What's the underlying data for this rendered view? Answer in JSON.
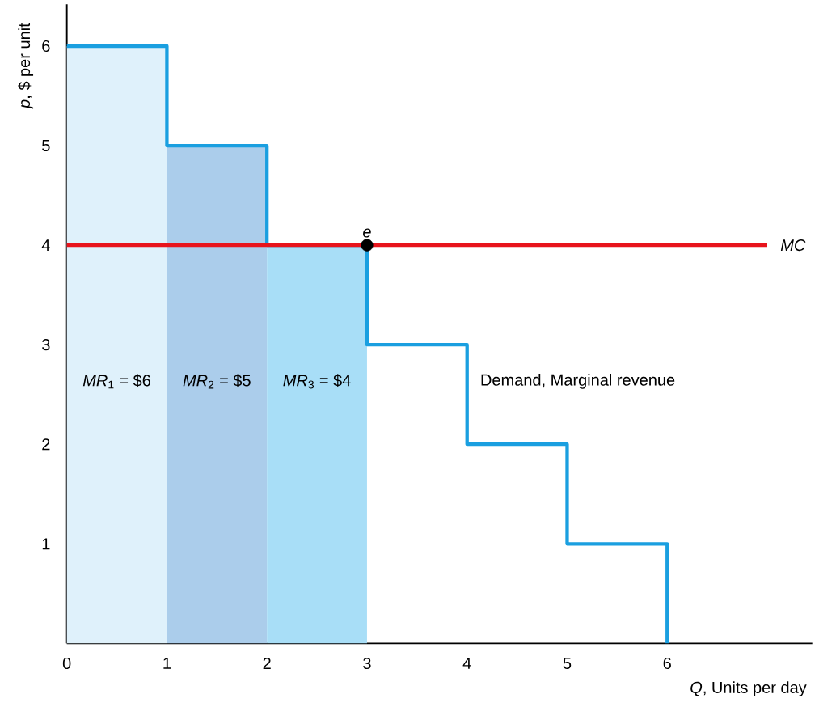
{
  "chart_data": {
    "type": "step",
    "xlabel": "*Q*, Units per day",
    "ylabel": "*p*, $ per unit",
    "xlim": [
      0,
      7.45
    ],
    "ylim": [
      0,
      6.42
    ],
    "xticks": [
      0,
      1,
      2,
      3,
      4,
      5,
      6
    ],
    "yticks": [
      1,
      2,
      3,
      4,
      5,
      6
    ],
    "series": [
      {
        "type": "bar",
        "x": [
          0.5,
          1.5,
          2.5
        ],
        "values": [
          6,
          5,
          4
        ],
        "colors": [
          "#dff1fb",
          "#abcdeb",
          "#a8def7"
        ],
        "value_labels": [
          "*MR*$_{1}$ = $6",
          "*MR*$_{2}$ = $5",
          "*MR*$_{3}$ = $4"
        ]
      },
      {
        "name": "Demand, Marginal revenue",
        "color": "#1a9fe0",
        "x": [
          0,
          1,
          2,
          3,
          4,
          5,
          6
        ],
        "values": [
          6,
          5,
          4,
          3,
          2,
          1,
          0
        ]
      },
      {
        "type": "line",
        "name": "MC",
        "color": "#e8141c",
        "x": [
          0,
          7
        ],
        "values": [
          4,
          4
        ]
      },
      {
        "type": "scatter",
        "color": "#000000",
        "marker": "circle",
        "x": [
          3
        ],
        "values": [
          4
        ]
      }
    ],
    "annotations": [
      {
        "text": "e",
        "x": 3,
        "y": 4
      }
    ]
  }
}
